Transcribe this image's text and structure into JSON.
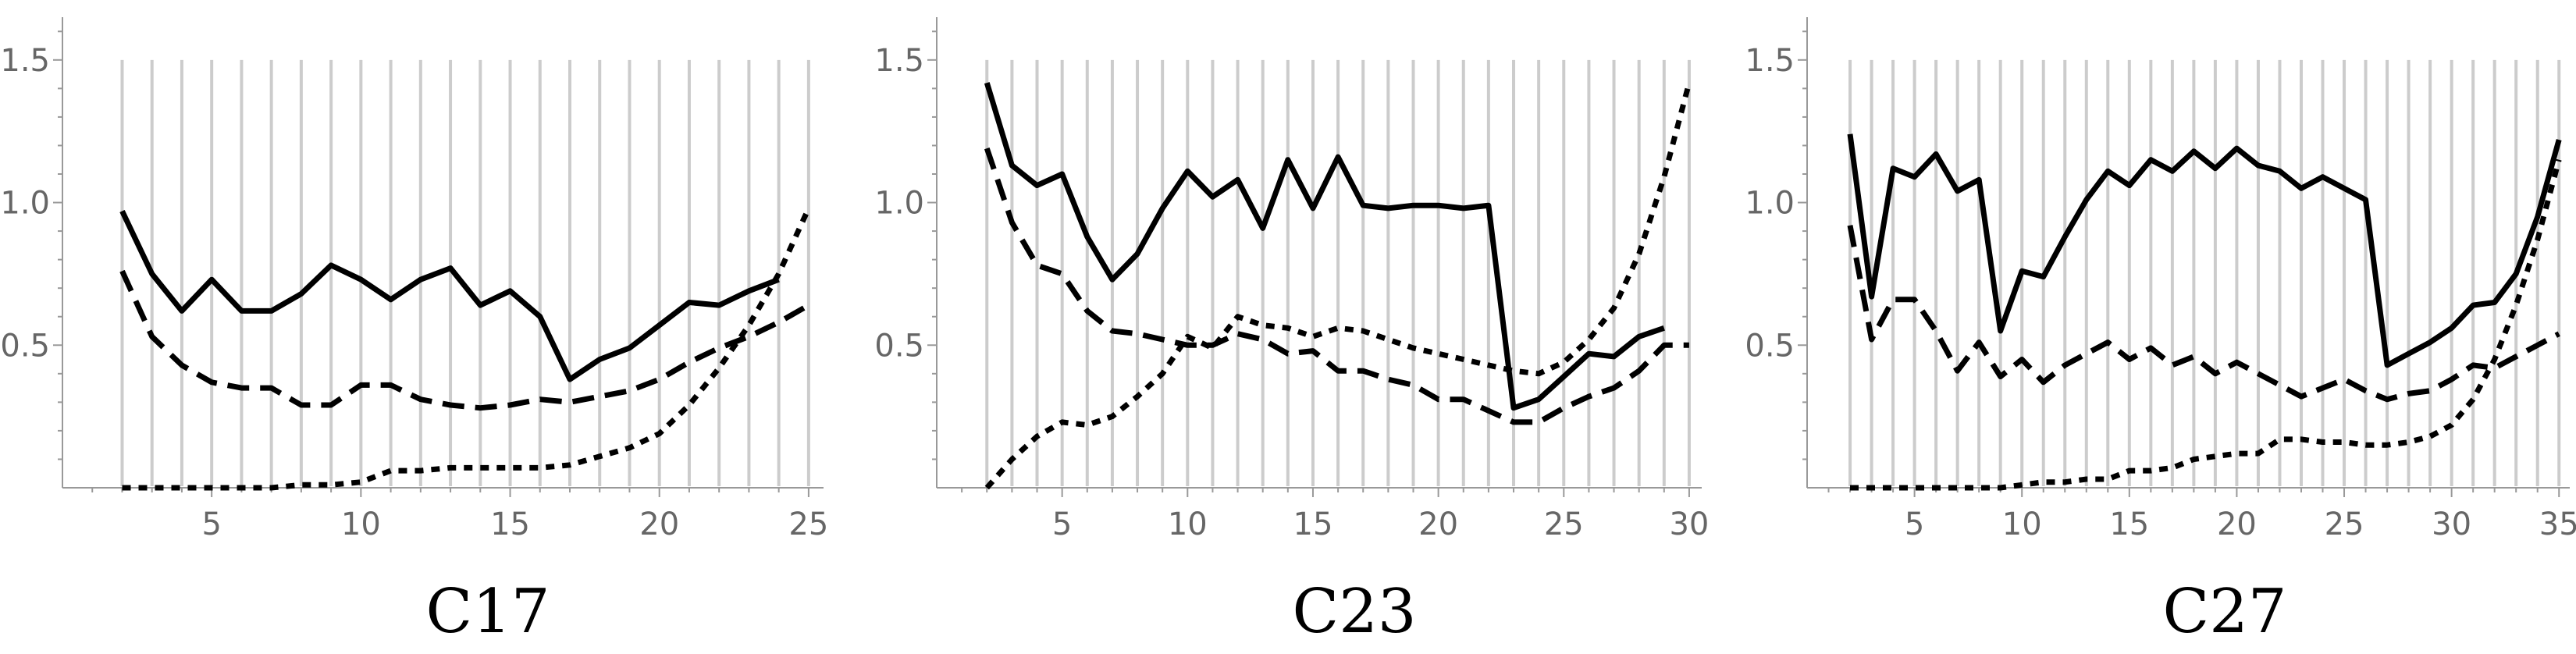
{
  "chart_data": [
    {
      "type": "line",
      "caption": "C17",
      "xlim": [
        0,
        25.5
      ],
      "ylim": [
        0,
        1.65
      ],
      "x_ticks": [
        5,
        10,
        15,
        20,
        25
      ],
      "y_ticks": [
        0.5,
        1.0,
        1.5
      ],
      "x_tick_labels": [
        "5",
        "10",
        "15",
        "20",
        "25"
      ],
      "y_tick_labels": [
        "0.5",
        "1.0",
        "1.5"
      ],
      "grid": "vertical lines at integers 2–25",
      "grid_x": [
        2,
        25
      ],
      "series": [
        {
          "style": "solid",
          "x": [
            2,
            3,
            4,
            5,
            6,
            7,
            8,
            9,
            10,
            11,
            12,
            13,
            14,
            15,
            16,
            17,
            18,
            19,
            20,
            21,
            22,
            23,
            24
          ],
          "y": [
            0.97,
            0.75,
            0.62,
            0.73,
            0.62,
            0.62,
            0.68,
            0.78,
            0.73,
            0.66,
            0.73,
            0.77,
            0.64,
            0.69,
            0.6,
            0.38,
            0.45,
            0.49,
            0.57,
            0.65,
            0.64,
            0.69,
            0.73
          ]
        },
        {
          "style": "dashed",
          "x": [
            2,
            3,
            4,
            5,
            6,
            7,
            8,
            9,
            10,
            11,
            12,
            13,
            14,
            15,
            16,
            17,
            18,
            19,
            20,
            21,
            22,
            23,
            24,
            25
          ],
          "y": [
            0.76,
            0.53,
            0.43,
            0.37,
            0.35,
            0.35,
            0.29,
            0.29,
            0.36,
            0.36,
            0.31,
            0.29,
            0.28,
            0.29,
            0.31,
            0.3,
            0.32,
            0.34,
            0.38,
            0.44,
            0.49,
            0.53,
            0.58,
            0.64
          ]
        },
        {
          "style": "dotted",
          "x": [
            2,
            3,
            4,
            5,
            6,
            7,
            8,
            9,
            10,
            11,
            12,
            13,
            14,
            15,
            16,
            17,
            18,
            19,
            20,
            21,
            22,
            23,
            24,
            25
          ],
          "y": [
            0.0,
            0.0,
            0.0,
            0.0,
            0.0,
            0.0,
            0.01,
            0.01,
            0.02,
            0.06,
            0.06,
            0.07,
            0.07,
            0.07,
            0.07,
            0.08,
            0.11,
            0.14,
            0.19,
            0.29,
            0.42,
            0.57,
            0.75,
            0.98
          ]
        }
      ]
    },
    {
      "type": "line",
      "caption": "C23",
      "xlim": [
        0,
        30.5
      ],
      "ylim": [
        0,
        1.65
      ],
      "x_ticks": [
        5,
        10,
        15,
        20,
        25,
        30
      ],
      "y_ticks": [
        0.5,
        1.0,
        1.5
      ],
      "x_tick_labels": [
        "5",
        "10",
        "15",
        "20",
        "25",
        "30"
      ],
      "y_tick_labels": [
        "0.5",
        "1.0",
        "1.5"
      ],
      "grid": "vertical lines at integers 2–30",
      "grid_x": [
        2,
        30
      ],
      "series": [
        {
          "style": "solid",
          "x": [
            2,
            3,
            4,
            5,
            6,
            7,
            8,
            9,
            10,
            11,
            12,
            13,
            14,
            15,
            16,
            17,
            18,
            19,
            20,
            21,
            22,
            23,
            24,
            25,
            26,
            27,
            28,
            29
          ],
          "y": [
            1.42,
            1.13,
            1.06,
            1.1,
            0.88,
            0.73,
            0.82,
            0.98,
            1.11,
            1.02,
            1.08,
            0.91,
            1.15,
            0.98,
            1.16,
            0.99,
            0.98,
            0.99,
            0.99,
            0.98,
            0.99,
            0.28,
            0.31,
            0.39,
            0.47,
            0.46,
            0.53,
            0.56
          ]
        },
        {
          "style": "dashed",
          "x": [
            2,
            3,
            4,
            5,
            6,
            7,
            8,
            9,
            10,
            11,
            12,
            13,
            14,
            15,
            16,
            17,
            18,
            19,
            20,
            21,
            22,
            23,
            24,
            25,
            26,
            27,
            28,
            29,
            30
          ],
          "y": [
            1.19,
            0.93,
            0.78,
            0.75,
            0.62,
            0.55,
            0.54,
            0.52,
            0.5,
            0.5,
            0.54,
            0.52,
            0.47,
            0.48,
            0.41,
            0.41,
            0.38,
            0.36,
            0.31,
            0.31,
            0.27,
            0.23,
            0.23,
            0.28,
            0.32,
            0.35,
            0.41,
            0.5,
            0.5
          ]
        },
        {
          "style": "dotted",
          "x": [
            2,
            3,
            4,
            5,
            6,
            7,
            8,
            9,
            10,
            11,
            12,
            13,
            14,
            15,
            16,
            17,
            18,
            19,
            20,
            21,
            22,
            23,
            24,
            25,
            26,
            27,
            28,
            29,
            30
          ],
          "y": [
            0.0,
            0.1,
            0.18,
            0.23,
            0.22,
            0.25,
            0.32,
            0.4,
            0.53,
            0.49,
            0.6,
            0.57,
            0.56,
            0.53,
            0.56,
            0.55,
            0.52,
            0.49,
            0.47,
            0.45,
            0.43,
            0.41,
            0.4,
            0.44,
            0.52,
            0.63,
            0.82,
            1.09,
            1.42
          ]
        }
      ]
    },
    {
      "type": "line",
      "caption": "C27",
      "xlim": [
        0,
        35.5
      ],
      "ylim": [
        0,
        1.65
      ],
      "x_ticks": [
        5,
        10,
        15,
        20,
        25,
        30,
        35
      ],
      "y_ticks": [
        0.5,
        1.0,
        1.5
      ],
      "x_tick_labels": [
        "5",
        "10",
        "15",
        "20",
        "25",
        "30",
        "35"
      ],
      "y_tick_labels": [
        "0.5",
        "1.0",
        "1.5"
      ],
      "grid": "vertical lines at integers 2–35",
      "grid_x": [
        2,
        35
      ],
      "series": [
        {
          "style": "solid",
          "x": [
            2,
            3,
            4,
            5,
            6,
            7,
            8,
            9,
            10,
            11,
            12,
            13,
            14,
            15,
            16,
            17,
            18,
            19,
            20,
            21,
            22,
            23,
            24,
            25,
            26,
            27,
            28,
            29,
            30,
            31,
            32,
            33,
            34,
            35
          ],
          "y": [
            1.24,
            0.67,
            1.12,
            1.09,
            1.17,
            1.04,
            1.08,
            0.55,
            0.76,
            0.74,
            0.88,
            1.01,
            1.11,
            1.06,
            1.15,
            1.11,
            1.18,
            1.12,
            1.19,
            1.13,
            1.11,
            1.05,
            1.09,
            1.05,
            1.01,
            0.43,
            0.47,
            0.51,
            0.56,
            0.64,
            0.65,
            0.75,
            0.95,
            1.22
          ]
        },
        {
          "style": "dashed",
          "x": [
            2,
            3,
            4,
            5,
            6,
            7,
            8,
            9,
            10,
            11,
            12,
            13,
            14,
            15,
            16,
            17,
            18,
            19,
            20,
            21,
            22,
            23,
            24,
            25,
            26,
            27,
            28,
            29,
            30,
            31,
            32,
            33,
            34,
            35
          ],
          "y": [
            0.92,
            0.52,
            0.66,
            0.66,
            0.55,
            0.41,
            0.51,
            0.39,
            0.45,
            0.37,
            0.43,
            0.47,
            0.51,
            0.45,
            0.49,
            0.43,
            0.46,
            0.4,
            0.44,
            0.4,
            0.36,
            0.32,
            0.35,
            0.38,
            0.34,
            0.31,
            0.33,
            0.34,
            0.38,
            0.43,
            0.42,
            0.46,
            0.5,
            0.54
          ]
        },
        {
          "style": "dotted",
          "x": [
            2,
            3,
            4,
            5,
            6,
            7,
            8,
            9,
            10,
            11,
            12,
            13,
            14,
            15,
            16,
            17,
            18,
            19,
            20,
            21,
            22,
            23,
            24,
            25,
            26,
            27,
            28,
            29,
            30,
            31,
            32,
            33,
            34,
            35
          ],
          "y": [
            0.0,
            0.0,
            0.0,
            0.0,
            0.0,
            0.0,
            0.0,
            0.0,
            0.01,
            0.02,
            0.02,
            0.03,
            0.03,
            0.06,
            0.06,
            0.07,
            0.1,
            0.11,
            0.12,
            0.12,
            0.17,
            0.17,
            0.16,
            0.16,
            0.15,
            0.15,
            0.16,
            0.18,
            0.22,
            0.31,
            0.45,
            0.64,
            0.87,
            1.15
          ]
        }
      ]
    }
  ]
}
